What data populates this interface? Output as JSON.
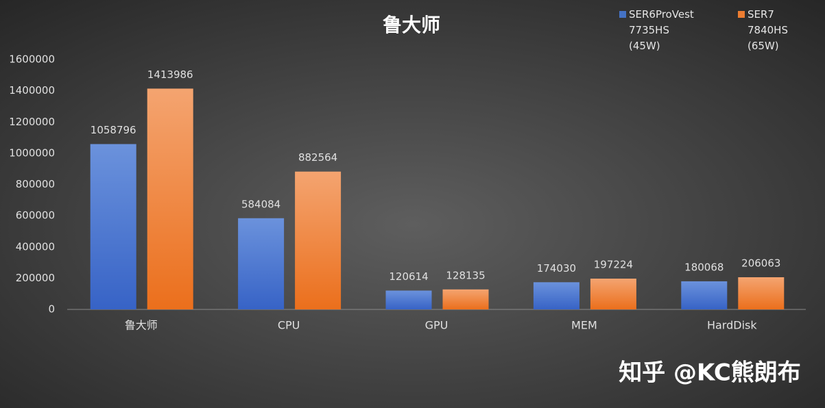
{
  "chart_data": {
    "type": "bar",
    "title": "鲁大师",
    "categories": [
      "鲁大师",
      "CPU",
      "GPU",
      "MEM",
      "HardDisk"
    ],
    "series": [
      {
        "name": "SER6ProVest 7735HS (45W)",
        "color": "#4472c4",
        "values": [
          1058796,
          584084,
          120614,
          174030,
          180068
        ]
      },
      {
        "name": "SER7 7840HS (65W)",
        "color": "#ed7d31",
        "values": [
          1413986,
          882564,
          128135,
          197224,
          206063
        ]
      }
    ],
    "ylim": [
      0,
      1600000
    ],
    "yticks": [
      0,
      200000,
      400000,
      600000,
      800000,
      1000000,
      1200000,
      1400000,
      1600000
    ],
    "grid": false,
    "legend": "top-right",
    "watermark": "知乎 @KC熊朗布"
  }
}
